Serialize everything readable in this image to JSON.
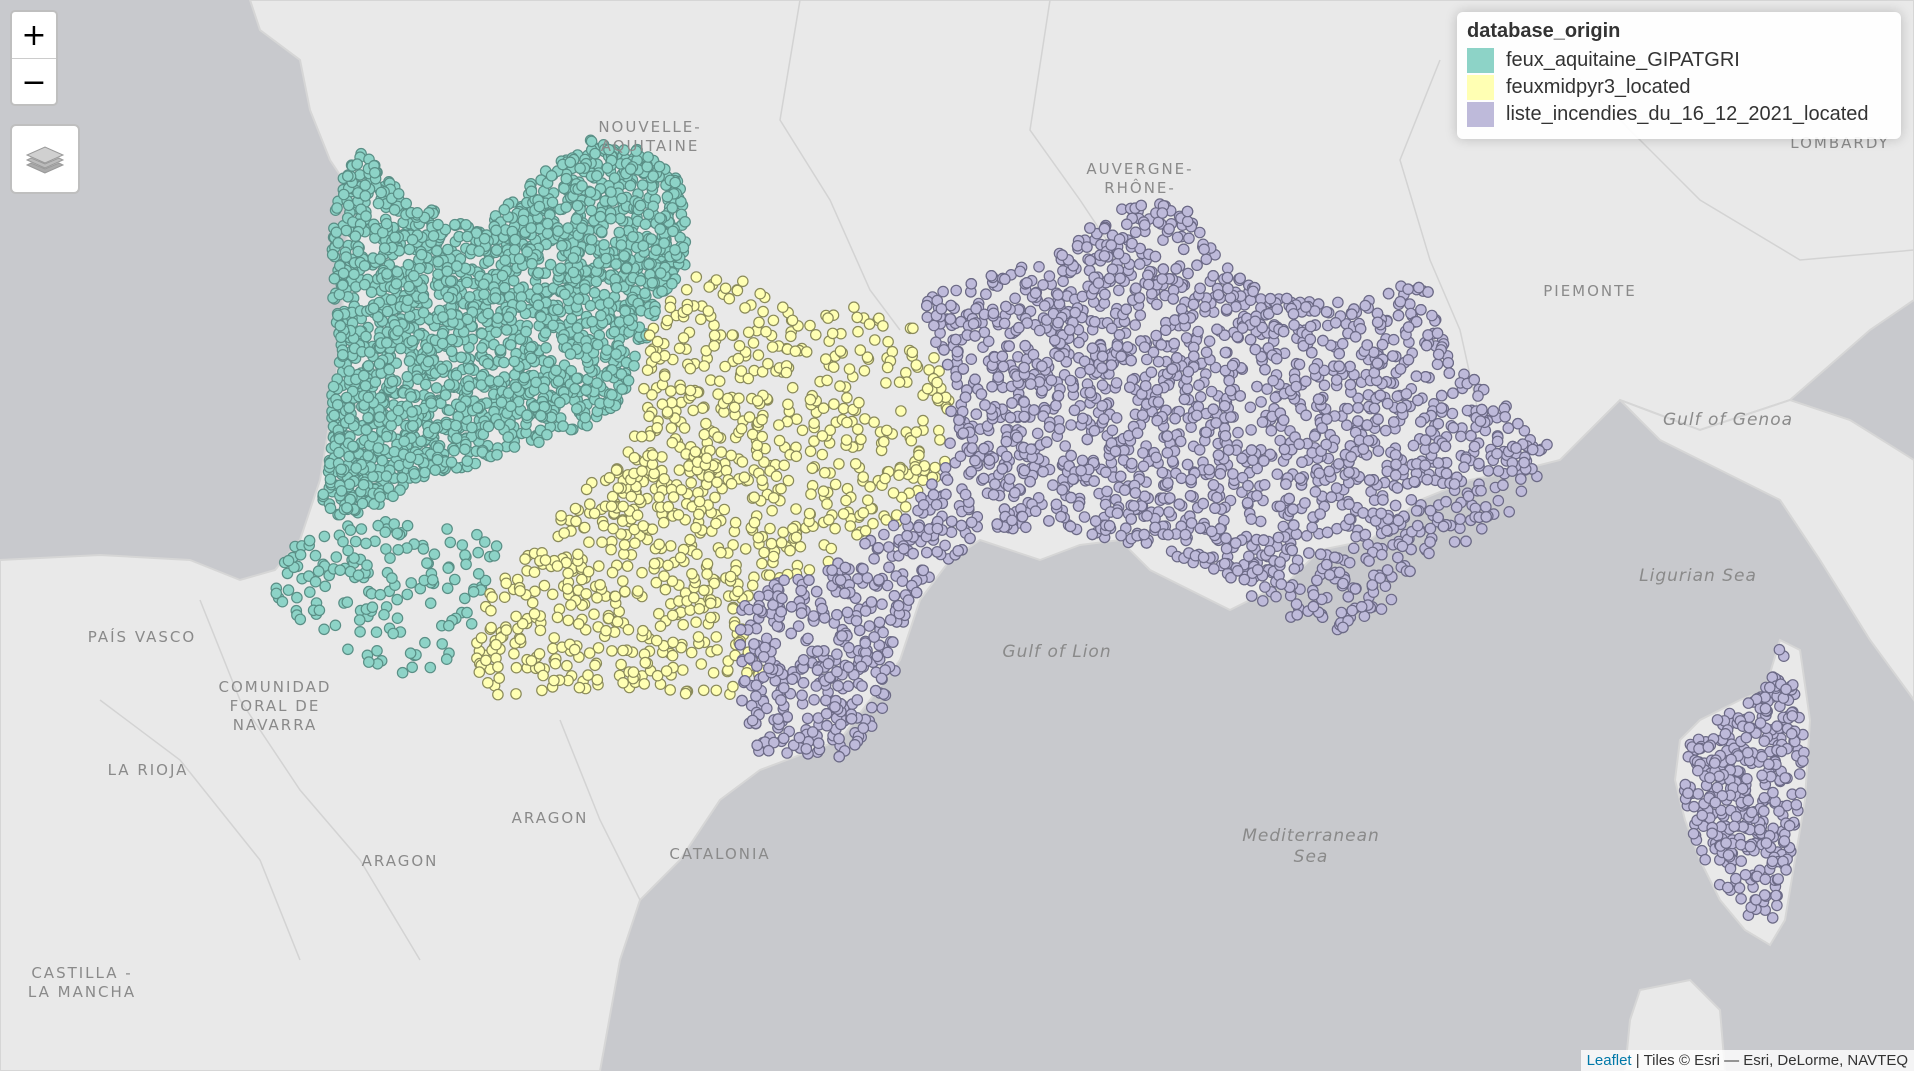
{
  "map": {
    "colors": {
      "sea": "#c8c9cd",
      "land": "#e9e9e9",
      "aquitaine": "#8dd3c7",
      "midpyr": "#ffffb3",
      "incendies": "#bebada"
    },
    "place_labels": [
      {
        "id": "nouvelle-aquitaine",
        "lines": [
          "NOUVELLE-",
          "AQUITAINE"
        ]
      },
      {
        "id": "auvergne-rhone-alpes",
        "lines": [
          "AUVERGNE-",
          "RHÔNE-"
        ]
      },
      {
        "id": "piemonte",
        "lines": [
          "PIEMONTE"
        ]
      },
      {
        "id": "lombardy",
        "lines": [
          "LOMBARDY"
        ]
      },
      {
        "id": "pais-vasco",
        "lines": [
          "PAÍS VASCO"
        ]
      },
      {
        "id": "navarra",
        "lines": [
          "COMUNIDAD",
          "FORAL DE",
          "NAVARRA"
        ]
      },
      {
        "id": "la-rioja",
        "lines": [
          "LA RIOJA"
        ]
      },
      {
        "id": "aragon-1",
        "lines": [
          "ARAGON"
        ]
      },
      {
        "id": "aragon-2",
        "lines": [
          "ARAGON"
        ]
      },
      {
        "id": "catalonia",
        "lines": [
          "CATALONIA"
        ]
      },
      {
        "id": "castilla",
        "lines": [
          "CASTILLA -",
          "LA MANCHA"
        ]
      }
    ],
    "water_labels": [
      {
        "id": "gulf-of-genoa",
        "lines": [
          "Gulf of Genoa"
        ]
      },
      {
        "id": "ligurian-sea",
        "lines": [
          "Ligurian Sea"
        ]
      },
      {
        "id": "gulf-of-lion",
        "lines": [
          "Gulf of Lion"
        ]
      },
      {
        "id": "mediterranean-sea",
        "lines": [
          "Mediterranean",
          "Sea"
        ]
      }
    ]
  },
  "controls": {
    "zoom_in": "+",
    "zoom_out": "−"
  },
  "legend": {
    "title": "database_origin",
    "items": [
      {
        "label": "feux_aquitaine_GIPATGRI",
        "color": "#8dd3c7"
      },
      {
        "label": "feuxmidpyr3_located",
        "color": "#ffffb3"
      },
      {
        "label": "liste_incendies_du_16_12_2021_located",
        "color": "#bebada"
      }
    ]
  },
  "attribution": {
    "link": "Leaflet",
    "text": " | Tiles © Esri — Esri, DeLorme, NAVTEQ"
  }
}
